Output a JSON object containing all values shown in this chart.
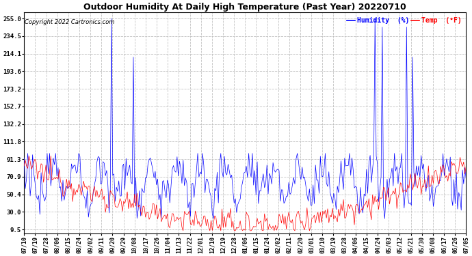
{
  "title": "Outdoor Humidity At Daily High Temperature (Past Year) 20220710",
  "copyright": "Copyright 2022 Cartronics.com",
  "legend_humidity": "Humidity  (%)",
  "legend_temp": "Temp  (°F)",
  "humidity_color": "#0000FF",
  "temp_color": "#FF0000",
  "background_color": "#FFFFFF",
  "yticks": [
    9.5,
    30.0,
    50.4,
    70.9,
    91.3,
    111.8,
    132.2,
    152.7,
    173.2,
    193.6,
    214.1,
    234.5,
    255.0
  ],
  "ylim": [
    5,
    262
  ],
  "xtick_labels": [
    "07/10",
    "07/19",
    "07/28",
    "08/06",
    "08/15",
    "08/24",
    "09/02",
    "09/11",
    "09/20",
    "09/29",
    "10/08",
    "10/17",
    "10/26",
    "11/04",
    "11/13",
    "11/22",
    "12/01",
    "12/10",
    "12/19",
    "12/28",
    "01/06",
    "01/15",
    "01/24",
    "02/02",
    "02/11",
    "02/20",
    "03/01",
    "03/10",
    "03/19",
    "03/28",
    "04/06",
    "04/15",
    "04/24",
    "05/03",
    "05/12",
    "05/21",
    "05/30",
    "06/08",
    "06/17",
    "06/26",
    "07/05"
  ],
  "n_points": 365,
  "humidity_spikes": [
    {
      "idx": 72,
      "val": 255
    },
    {
      "idx": 90,
      "val": 210
    },
    {
      "idx": 289,
      "val": 255
    },
    {
      "idx": 295,
      "val": 245
    },
    {
      "idx": 315,
      "val": 245
    },
    {
      "idx": 320,
      "val": 210
    }
  ],
  "temp_spike_positions": []
}
